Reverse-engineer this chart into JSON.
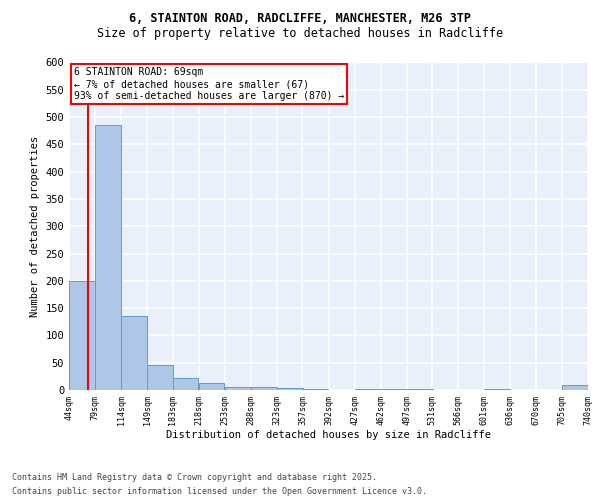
{
  "title1": "6, STAINTON ROAD, RADCLIFFE, MANCHESTER, M26 3TP",
  "title2": "Size of property relative to detached houses in Radcliffe",
  "xlabel": "Distribution of detached houses by size in Radcliffe",
  "ylabel": "Number of detached properties",
  "bins": [
    44,
    79,
    114,
    149,
    183,
    218,
    253,
    288,
    323,
    357,
    392,
    427,
    462,
    497,
    531,
    566,
    601,
    636,
    670,
    705,
    740
  ],
  "counts": [
    200,
    485,
    135,
    45,
    22,
    12,
    5,
    5,
    3,
    2,
    0,
    1,
    1,
    1,
    0,
    0,
    1,
    0,
    0,
    10
  ],
  "bar_color": "#aec6e8",
  "bar_edge_color": "#5a9fd4",
  "property_size": 69,
  "annotation_line1": "6 STAINTON ROAD: 69sqm",
  "annotation_line2": "← 7% of detached houses are smaller (67)",
  "annotation_line3": "93% of semi-detached houses are larger (870) →",
  "annotation_box_color": "white",
  "annotation_box_edge_color": "red",
  "vline_color": "red",
  "ylim": [
    0,
    600
  ],
  "yticks": [
    0,
    50,
    100,
    150,
    200,
    250,
    300,
    350,
    400,
    450,
    500,
    550,
    600
  ],
  "footer1": "Contains HM Land Registry data © Crown copyright and database right 2025.",
  "footer2": "Contains public sector information licensed under the Open Government Licence v3.0.",
  "bg_color": "#eaf0fb",
  "grid_color": "white",
  "title1_fontsize": 8.5,
  "title2_fontsize": 8.5,
  "ylabel_fontsize": 7.5,
  "xlabel_fontsize": 7.5,
  "ytick_fontsize": 7.5,
  "xtick_fontsize": 6.0,
  "annot_fontsize": 7.0,
  "footer_fontsize": 6.0
}
